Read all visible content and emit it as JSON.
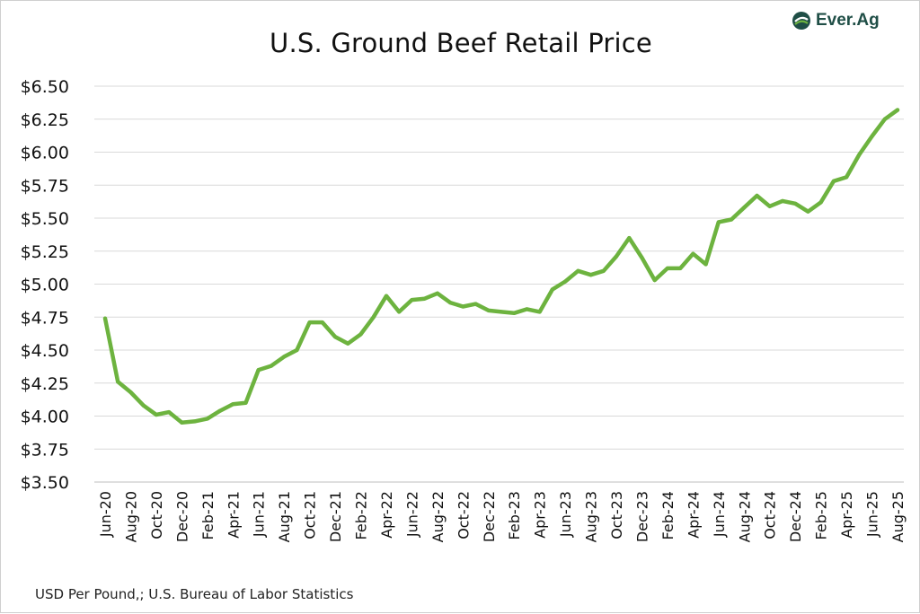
{
  "brand": {
    "name": "Ever.Ag",
    "logo_icon": "everag-logo-icon"
  },
  "chart_data": {
    "type": "line",
    "title": "U.S. Ground Beef Retail Price",
    "source_note": "USD Per Pound,; U.S. Bureau of Labor Statistics",
    "ylim": [
      3.5,
      6.5
    ],
    "y_ticks": [
      3.5,
      3.75,
      4.0,
      4.25,
      4.5,
      4.75,
      5.0,
      5.25,
      5.5,
      5.75,
      6.0,
      6.25,
      6.5
    ],
    "y_tick_labels": [
      "$3.50",
      "$3.75",
      "$4.00",
      "$4.25",
      "$4.50",
      "$4.75",
      "$5.00",
      "$5.25",
      "$5.50",
      "$5.75",
      "$6.00",
      "$6.25",
      "$6.50"
    ],
    "x_tick_labels": [
      "Jun-20",
      "Aug-20",
      "Oct-20",
      "Dec-20",
      "Feb-21",
      "Apr-21",
      "Jun-21",
      "Aug-21",
      "Oct-21",
      "Dec-21",
      "Feb-22",
      "Apr-22",
      "Jun-22",
      "Aug-22",
      "Oct-22",
      "Dec-22",
      "Feb-23",
      "Apr-23",
      "Jun-23",
      "Aug-23",
      "Oct-23",
      "Dec-23",
      "Feb-24",
      "Apr-24",
      "Jun-24",
      "Aug-24",
      "Oct-24",
      "Dec-24",
      "Feb-25",
      "Apr-25",
      "Jun-25",
      "Aug-25"
    ],
    "grid": true,
    "line_color": "#6db33f",
    "series": [
      {
        "x": [
          "Jun-20",
          "Jul-20",
          "Aug-20",
          "Sep-20",
          "Oct-20",
          "Nov-20",
          "Dec-20",
          "Jan-21",
          "Feb-21",
          "Mar-21",
          "Apr-21",
          "May-21",
          "Jun-21",
          "Jul-21",
          "Aug-21",
          "Sep-21",
          "Oct-21",
          "Nov-21",
          "Dec-21",
          "Jan-22",
          "Feb-22",
          "Mar-22",
          "Apr-22",
          "May-22",
          "Jun-22",
          "Jul-22",
          "Aug-22",
          "Sep-22",
          "Oct-22",
          "Nov-22",
          "Dec-22",
          "Jan-23",
          "Feb-23",
          "Mar-23",
          "Apr-23",
          "May-23",
          "Jun-23",
          "Jul-23",
          "Aug-23",
          "Sep-23",
          "Oct-23",
          "Nov-23",
          "Dec-23",
          "Jan-24",
          "Feb-24",
          "Mar-24",
          "Apr-24",
          "May-24",
          "Jun-24",
          "Jul-24",
          "Aug-24",
          "Sep-24",
          "Oct-24",
          "Nov-24",
          "Dec-24",
          "Jan-25",
          "Feb-25",
          "Mar-25",
          "Apr-25",
          "May-25",
          "Jun-25",
          "Jul-25",
          "Aug-25"
        ],
        "values": [
          4.74,
          4.26,
          4.18,
          4.08,
          4.01,
          4.03,
          3.95,
          3.96,
          3.98,
          4.04,
          4.09,
          4.1,
          4.35,
          4.38,
          4.45,
          4.5,
          4.71,
          4.71,
          4.6,
          4.55,
          4.62,
          4.75,
          4.91,
          4.79,
          4.88,
          4.89,
          4.93,
          4.86,
          4.83,
          4.85,
          4.8,
          4.79,
          4.78,
          4.81,
          4.79,
          4.96,
          5.02,
          5.1,
          5.07,
          5.1,
          5.21,
          5.35,
          5.2,
          5.03,
          5.12,
          5.12,
          5.23,
          5.15,
          5.47,
          5.49,
          5.58,
          5.67,
          5.59,
          5.63,
          5.61,
          5.55,
          5.62,
          5.78,
          5.81,
          5.98,
          6.12,
          6.25,
          6.32
        ]
      }
    ]
  }
}
